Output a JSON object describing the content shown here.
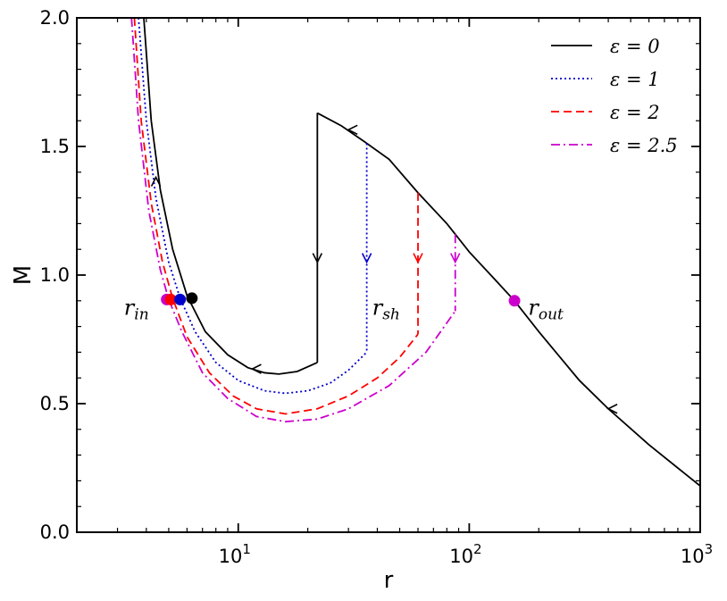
{
  "chart_data": {
    "type": "line",
    "xscale": "log",
    "xlim": [
      2,
      1000
    ],
    "ylim": [
      0,
      2.0
    ],
    "xlabel": "r",
    "ylabel": "M",
    "x_ticks": [
      {
        "value": 10,
        "base": "10",
        "exp": "1"
      },
      {
        "value": 100,
        "base": "10",
        "exp": "2"
      },
      {
        "value": 1000,
        "base": "10",
        "exp": "3"
      }
    ],
    "y_ticks": [
      {
        "value": 0.0,
        "label": "0.0"
      },
      {
        "value": 0.5,
        "label": "0.5"
      },
      {
        "value": 1.0,
        "label": "1.0"
      },
      {
        "value": 1.5,
        "label": "1.5"
      },
      {
        "value": 2.0,
        "label": "2.0"
      }
    ],
    "legend_position": "top-right",
    "series": [
      {
        "name": "ε = 0",
        "color": "#000000",
        "dash": "solid",
        "inner": [
          [
            3.9,
            2.0
          ],
          [
            4.2,
            1.6
          ],
          [
            4.6,
            1.33
          ],
          [
            5.2,
            1.1
          ],
          [
            6.0,
            0.92
          ],
          [
            7.2,
            0.78
          ],
          [
            9.0,
            0.69
          ],
          [
            11.0,
            0.64
          ],
          [
            13.0,
            0.62
          ],
          [
            15.0,
            0.615
          ],
          [
            18.0,
            0.625
          ],
          [
            22.0,
            0.66
          ]
        ],
        "outer": [
          [
            22.0,
            1.63
          ],
          [
            28.0,
            1.58
          ],
          [
            35.0,
            1.52
          ],
          [
            45.0,
            1.45
          ],
          [
            60.0,
            1.32
          ],
          [
            80.0,
            1.2
          ],
          [
            100.0,
            1.09
          ],
          [
            130.0,
            0.98
          ],
          [
            157.0,
            0.9
          ],
          [
            200.0,
            0.78
          ],
          [
            300.0,
            0.59
          ],
          [
            400.0,
            0.48
          ],
          [
            600.0,
            0.34
          ],
          [
            1000.0,
            0.18
          ]
        ],
        "shock_r": 22.0,
        "sonic_points": [
          [
            6.3,
            0.91
          ]
        ],
        "arrows": [
          {
            "x": 4.4,
            "y": 1.38,
            "dir": "up"
          },
          {
            "x": 22.0,
            "y": 1.05,
            "dir": "down"
          },
          {
            "x": 11.5,
            "y": 0.635,
            "dir": "left"
          },
          {
            "x": 30.0,
            "y": 1.565,
            "dir": "left"
          },
          {
            "x": 400.0,
            "y": 0.48,
            "dir": "left"
          }
        ]
      },
      {
        "name": "ε = 1",
        "color": "#0000cc",
        "dash": "dotted",
        "inner": [
          [
            3.7,
            2.0
          ],
          [
            4.0,
            1.6
          ],
          [
            4.4,
            1.3
          ],
          [
            5.0,
            1.05
          ],
          [
            5.6,
            0.91
          ],
          [
            6.5,
            0.78
          ],
          [
            8.0,
            0.66
          ],
          [
            10.0,
            0.59
          ],
          [
            13.0,
            0.55
          ],
          [
            16.0,
            0.54
          ],
          [
            20.0,
            0.55
          ],
          [
            25.0,
            0.58
          ],
          [
            30.0,
            0.63
          ],
          [
            36.0,
            0.7
          ]
        ],
        "shock_r": 36.0,
        "sonic_points": [
          [
            5.6,
            0.905
          ]
        ],
        "arrows": [
          {
            "x": 36.0,
            "y": 1.05,
            "dir": "down"
          }
        ]
      },
      {
        "name": "ε = 2",
        "color": "#ff0000",
        "dash": "dashed",
        "inner": [
          [
            3.55,
            2.0
          ],
          [
            3.8,
            1.6
          ],
          [
            4.2,
            1.28
          ],
          [
            4.7,
            1.05
          ],
          [
            5.2,
            0.91
          ],
          [
            6.0,
            0.76
          ],
          [
            7.5,
            0.62
          ],
          [
            9.5,
            0.53
          ],
          [
            12.0,
            0.48
          ],
          [
            16.0,
            0.46
          ],
          [
            22.0,
            0.48
          ],
          [
            30.0,
            0.53
          ],
          [
            40.0,
            0.6
          ],
          [
            50.0,
            0.68
          ],
          [
            60.0,
            0.77
          ]
        ],
        "shock_r": 60.0,
        "sonic_points": [
          [
            5.1,
            0.905
          ]
        ],
        "arrows": [
          {
            "x": 60.0,
            "y": 1.05,
            "dir": "down"
          }
        ]
      },
      {
        "name": "ε = 2.5",
        "color": "#cc00cc",
        "dash": "dashdot",
        "inner": [
          [
            3.45,
            2.0
          ],
          [
            3.7,
            1.6
          ],
          [
            4.1,
            1.25
          ],
          [
            4.6,
            1.02
          ],
          [
            5.0,
            0.905
          ],
          [
            5.7,
            0.78
          ],
          [
            7.0,
            0.62
          ],
          [
            9.0,
            0.52
          ],
          [
            12.0,
            0.45
          ],
          [
            16.0,
            0.43
          ],
          [
            22.0,
            0.44
          ],
          [
            30.0,
            0.48
          ],
          [
            45.0,
            0.57
          ],
          [
            65.0,
            0.7
          ],
          [
            87.0,
            0.86
          ]
        ],
        "shock_r": 87.0,
        "sonic_points": [
          [
            4.9,
            0.905
          ],
          [
            157.0,
            0.9
          ]
        ],
        "arrows": [
          {
            "x": 87.0,
            "y": 1.05,
            "dir": "down"
          }
        ]
      }
    ],
    "annotations": [
      {
        "main": "r",
        "sub": "in",
        "x": 3.2,
        "y": 0.88
      },
      {
        "main": "r",
        "sub": "sh",
        "x": 38.0,
        "y": 0.88
      },
      {
        "main": "r",
        "sub": "out",
        "x": 180.0,
        "y": 0.88
      }
    ]
  }
}
